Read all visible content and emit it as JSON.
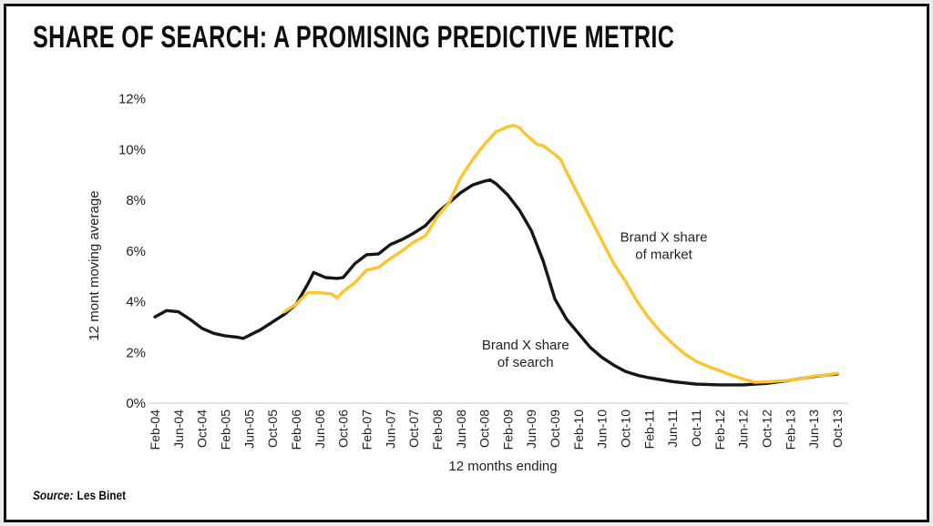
{
  "header": {
    "title": "SHARE OF SEARCH: A PROMISING PREDICTIVE METRIC"
  },
  "footer": {
    "source_label": "Source:",
    "source_value": "Les Binet"
  },
  "chart_data": {
    "type": "line",
    "title": "SHARE OF SEARCH: A PROMISING PREDICTIVE METRIC",
    "xlabel": "12 months ending",
    "ylabel": "12 mont moving average",
    "ylim": [
      0,
      12
    ],
    "grid": "baseline-only",
    "axis_line_color": "#e3e3e3",
    "legend_position": "inline-annotations",
    "y_ticks": [
      {
        "value": 0,
        "label": "0%"
      },
      {
        "value": 2,
        "label": "2%"
      },
      {
        "value": 4,
        "label": "4%"
      },
      {
        "value": 6,
        "label": "6%"
      },
      {
        "value": 8,
        "label": "8%"
      },
      {
        "value": 10,
        "label": "10%"
      },
      {
        "value": 12,
        "label": "12%"
      }
    ],
    "x_tick_labels": [
      "Feb-04",
      "Jun-04",
      "Oct-04",
      "Feb-05",
      "Jun-05",
      "Oct-05",
      "Feb-06",
      "Jun-06",
      "Oct-06",
      "Feb-07",
      "Jun-07",
      "Oct-07",
      "Feb-08",
      "Jun-08",
      "Oct-08",
      "Feb-09",
      "Jun-09",
      "Oct-09",
      "Feb-10",
      "Jun-10",
      "Oct-10",
      "Feb-11",
      "Jun-11",
      "Oct-11",
      "Feb-12",
      "Jun-12",
      "Oct-12",
      "Feb-13",
      "Jun-13",
      "Oct-13"
    ],
    "x_tick_month_step": 4,
    "series": [
      {
        "id": "search",
        "name": "Brand X share of search",
        "color": "#161616",
        "points": [
          [
            0,
            3.4
          ],
          [
            2,
            3.65
          ],
          [
            4,
            3.6
          ],
          [
            6,
            3.3
          ],
          [
            8,
            2.95
          ],
          [
            10,
            2.75
          ],
          [
            12,
            2.65
          ],
          [
            14,
            2.6
          ],
          [
            15,
            2.55
          ],
          [
            18,
            2.9
          ],
          [
            20,
            3.2
          ],
          [
            22,
            3.5
          ],
          [
            24,
            3.9
          ],
          [
            26,
            4.7
          ],
          [
            27,
            5.15
          ],
          [
            28,
            5.05
          ],
          [
            29,
            4.95
          ],
          [
            31,
            4.92
          ],
          [
            32,
            4.95
          ],
          [
            34,
            5.5
          ],
          [
            36,
            5.85
          ],
          [
            38,
            5.88
          ],
          [
            40,
            6.25
          ],
          [
            42,
            6.45
          ],
          [
            44,
            6.7
          ],
          [
            46,
            7.0
          ],
          [
            48,
            7.5
          ],
          [
            50,
            7.9
          ],
          [
            52,
            8.3
          ],
          [
            54,
            8.6
          ],
          [
            56,
            8.75
          ],
          [
            57,
            8.8
          ],
          [
            58,
            8.65
          ],
          [
            60,
            8.2
          ],
          [
            62,
            7.6
          ],
          [
            64,
            6.8
          ],
          [
            66,
            5.6
          ],
          [
            68,
            4.1
          ],
          [
            70,
            3.3
          ],
          [
            72,
            2.75
          ],
          [
            74,
            2.2
          ],
          [
            76,
            1.8
          ],
          [
            78,
            1.5
          ],
          [
            80,
            1.25
          ],
          [
            82,
            1.1
          ],
          [
            84,
            1.0
          ],
          [
            88,
            0.85
          ],
          [
            92,
            0.75
          ],
          [
            96,
            0.72
          ],
          [
            100,
            0.72
          ],
          [
            104,
            0.78
          ],
          [
            108,
            0.9
          ],
          [
            112,
            1.05
          ],
          [
            116,
            1.15
          ]
        ]
      },
      {
        "id": "market",
        "name": "Brand X share of market",
        "color": "#fdc42d",
        "points": [
          [
            22,
            3.6
          ],
          [
            24,
            3.9
          ],
          [
            26,
            4.35
          ],
          [
            28,
            4.35
          ],
          [
            30,
            4.3
          ],
          [
            31,
            4.15
          ],
          [
            32,
            4.4
          ],
          [
            34,
            4.75
          ],
          [
            36,
            5.25
          ],
          [
            37,
            5.3
          ],
          [
            38,
            5.35
          ],
          [
            40,
            5.7
          ],
          [
            42,
            6.0
          ],
          [
            44,
            6.35
          ],
          [
            46,
            6.6
          ],
          [
            48,
            7.35
          ],
          [
            50,
            7.9
          ],
          [
            52,
            8.9
          ],
          [
            54,
            9.6
          ],
          [
            56,
            10.2
          ],
          [
            58,
            10.7
          ],
          [
            60,
            10.9
          ],
          [
            61,
            10.95
          ],
          [
            62,
            10.85
          ],
          [
            63,
            10.6
          ],
          [
            64,
            10.4
          ],
          [
            65,
            10.2
          ],
          [
            66,
            10.15
          ],
          [
            68,
            9.8
          ],
          [
            69,
            9.6
          ],
          [
            70,
            9.1
          ],
          [
            72,
            8.2
          ],
          [
            74,
            7.3
          ],
          [
            76,
            6.4
          ],
          [
            78,
            5.5
          ],
          [
            80,
            4.8
          ],
          [
            82,
            4.0
          ],
          [
            84,
            3.35
          ],
          [
            86,
            2.8
          ],
          [
            88,
            2.35
          ],
          [
            90,
            1.95
          ],
          [
            92,
            1.65
          ],
          [
            94,
            1.45
          ],
          [
            96,
            1.28
          ],
          [
            98,
            1.1
          ],
          [
            100,
            0.95
          ],
          [
            102,
            0.82
          ],
          [
            104,
            0.84
          ],
          [
            108,
            0.9
          ],
          [
            110,
            0.97
          ],
          [
            112,
            1.07
          ],
          [
            114,
            1.1
          ],
          [
            116,
            1.18
          ]
        ]
      }
    ],
    "annotations": [
      {
        "id": "search-label",
        "lines": [
          "Brand X share",
          "of search"
        ],
        "month": 63,
        "pct": 1.95
      },
      {
        "id": "market-label",
        "lines": [
          "Brand X share",
          "of market"
        ],
        "month": 86.5,
        "pct": 6.2
      }
    ]
  }
}
